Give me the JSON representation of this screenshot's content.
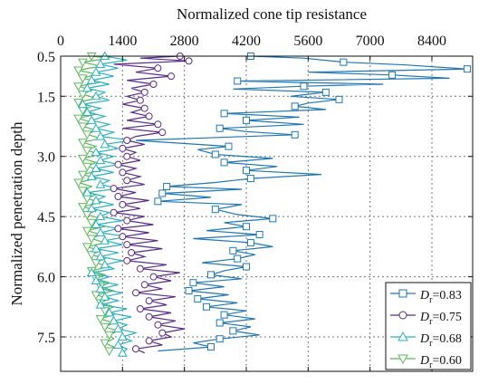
{
  "chart_data": {
    "type": "line",
    "xlabel": "Normalized cone tip resistance",
    "ylabel": "Normalized penetration depth",
    "x_axis_position": "top",
    "y_axis_inverted": true,
    "xlim": [
      0,
      9800
    ],
    "ylim": [
      0.5,
      8.2
    ],
    "xticks": [
      "0",
      "1400",
      "2800",
      "4200",
      "5600",
      "7000",
      "8400"
    ],
    "yticks": [
      "0.5",
      "1.5",
      "3.0",
      "4.5",
      "6.0",
      "7.5"
    ],
    "grid": true,
    "legend_position": "bottom-right",
    "series": [
      {
        "name": "=0.83",
        "legend_prefix": "D",
        "legend_subscript": "r",
        "color": "#1f77b4",
        "marker": "square",
        "points": [
          [
            4300,
            0.5
          ],
          [
            5500,
            0.55
          ],
          [
            6400,
            0.65
          ],
          [
            7800,
            0.72
          ],
          [
            9200,
            0.82
          ],
          [
            5600,
            0.9
          ],
          [
            7500,
            0.97
          ],
          [
            8800,
            1.05
          ],
          [
            4000,
            1.12
          ],
          [
            7300,
            1.2
          ],
          [
            5500,
            1.25
          ],
          [
            3900,
            1.32
          ],
          [
            6000,
            1.4
          ],
          [
            5200,
            1.5
          ],
          [
            6300,
            1.58
          ],
          [
            5600,
            1.67
          ],
          [
            5300,
            1.75
          ],
          [
            6000,
            1.83
          ],
          [
            3700,
            1.93
          ],
          [
            5400,
            2.02
          ],
          [
            4200,
            2.1
          ],
          [
            5500,
            2.2
          ],
          [
            3600,
            2.3
          ],
          [
            4200,
            2.38
          ],
          [
            5300,
            2.46
          ],
          [
            1700,
            2.6
          ],
          [
            3800,
            2.75
          ],
          [
            3100,
            2.83
          ],
          [
            3500,
            2.95
          ],
          [
            4800,
            3.05
          ],
          [
            3700,
            3.15
          ],
          [
            4900,
            3.25
          ],
          [
            4200,
            3.35
          ],
          [
            5900,
            3.45
          ],
          [
            4300,
            3.55
          ],
          [
            3500,
            3.65
          ],
          [
            2400,
            3.75
          ],
          [
            4100,
            3.82
          ],
          [
            2300,
            3.92
          ],
          [
            3400,
            4.02
          ],
          [
            2200,
            4.12
          ],
          [
            4100,
            4.2
          ],
          [
            3500,
            4.32
          ],
          [
            4000,
            4.45
          ],
          [
            4800,
            4.55
          ],
          [
            3700,
            4.65
          ],
          [
            4200,
            4.75
          ],
          [
            3300,
            4.85
          ],
          [
            4500,
            4.95
          ],
          [
            3000,
            5.05
          ],
          [
            4300,
            5.15
          ],
          [
            4800,
            5.25
          ],
          [
            3900,
            5.35
          ],
          [
            4400,
            5.45
          ],
          [
            4000,
            5.55
          ],
          [
            3200,
            5.65
          ],
          [
            4200,
            5.75
          ],
          [
            3700,
            5.85
          ],
          [
            3400,
            5.95
          ],
          [
            4100,
            6.05
          ],
          [
            3000,
            6.15
          ],
          [
            3700,
            6.25
          ],
          [
            2900,
            6.35
          ],
          [
            3800,
            6.45
          ],
          [
            3100,
            6.55
          ],
          [
            4000,
            6.65
          ],
          [
            3300,
            6.75
          ],
          [
            4200,
            6.85
          ],
          [
            3700,
            6.95
          ],
          [
            4400,
            7.05
          ],
          [
            3600,
            7.15
          ],
          [
            4300,
            7.25
          ],
          [
            3900,
            7.35
          ],
          [
            4500,
            7.45
          ],
          [
            3600,
            7.55
          ],
          [
            3000,
            7.65
          ],
          [
            3400,
            7.75
          ],
          [
            2200,
            7.85
          ]
        ]
      },
      {
        "name": "=0.75",
        "legend_prefix": "D",
        "legend_subscript": "r",
        "color": "#5a2a8a",
        "marker": "circle",
        "points": [
          [
            2700,
            0.5
          ],
          [
            1800,
            0.55
          ],
          [
            2900,
            0.62
          ],
          [
            1200,
            0.7
          ],
          [
            2200,
            0.8
          ],
          [
            1700,
            0.9
          ],
          [
            2500,
            1.0
          ],
          [
            1500,
            1.1
          ],
          [
            2100,
            1.2
          ],
          [
            1600,
            1.3
          ],
          [
            1900,
            1.4
          ],
          [
            1500,
            1.5
          ],
          [
            1800,
            1.6
          ],
          [
            1400,
            1.7
          ],
          [
            1900,
            1.8
          ],
          [
            1600,
            1.9
          ],
          [
            2000,
            2.0
          ],
          [
            1500,
            2.1
          ],
          [
            2200,
            2.2
          ],
          [
            1400,
            2.3
          ],
          [
            2300,
            2.4
          ],
          [
            1700,
            2.5
          ],
          [
            1500,
            2.6
          ],
          [
            1900,
            2.7
          ],
          [
            1400,
            2.8
          ],
          [
            1700,
            2.9
          ],
          [
            1500,
            3.0
          ],
          [
            1800,
            3.1
          ],
          [
            1300,
            3.2
          ],
          [
            1700,
            3.3
          ],
          [
            1400,
            3.4
          ],
          [
            1800,
            3.5
          ],
          [
            1500,
            3.6
          ],
          [
            1900,
            3.7
          ],
          [
            1200,
            3.8
          ],
          [
            1700,
            3.9
          ],
          [
            1300,
            4.0
          ],
          [
            2000,
            4.1
          ],
          [
            1400,
            4.2
          ],
          [
            1800,
            4.3
          ],
          [
            1200,
            4.4
          ],
          [
            1900,
            4.5
          ],
          [
            1500,
            4.6
          ],
          [
            2100,
            4.7
          ],
          [
            1300,
            4.8
          ],
          [
            2000,
            4.9
          ],
          [
            1400,
            5.0
          ],
          [
            2200,
            5.1
          ],
          [
            1500,
            5.2
          ],
          [
            2300,
            5.3
          ],
          [
            1600,
            5.4
          ],
          [
            1900,
            5.5
          ],
          [
            1500,
            5.6
          ],
          [
            2400,
            5.7
          ],
          [
            1800,
            5.8
          ],
          [
            2700,
            5.9
          ],
          [
            2100,
            6.0
          ],
          [
            2500,
            6.1
          ],
          [
            1900,
            6.2
          ],
          [
            2300,
            6.3
          ],
          [
            1700,
            6.4
          ],
          [
            2600,
            6.5
          ],
          [
            2000,
            6.6
          ],
          [
            2400,
            6.7
          ],
          [
            1800,
            6.8
          ],
          [
            2500,
            6.9
          ],
          [
            2000,
            7.0
          ],
          [
            2600,
            7.1
          ],
          [
            2200,
            7.2
          ],
          [
            2800,
            7.3
          ],
          [
            2300,
            7.4
          ],
          [
            2500,
            7.5
          ],
          [
            2000,
            7.6
          ],
          [
            2300,
            7.7
          ],
          [
            1700,
            7.8
          ],
          [
            1900,
            7.9
          ]
        ]
      },
      {
        "name": "=0.68",
        "legend_prefix": "D",
        "legend_subscript": "r",
        "color": "#2ab0c0",
        "marker": "triangle-up",
        "points": [
          [
            1000,
            0.5
          ],
          [
            1500,
            0.6
          ],
          [
            900,
            0.7
          ],
          [
            1300,
            0.8
          ],
          [
            800,
            0.9
          ],
          [
            1200,
            1.0
          ],
          [
            700,
            1.1
          ],
          [
            1100,
            1.2
          ],
          [
            600,
            1.3
          ],
          [
            1000,
            1.4
          ],
          [
            800,
            1.5
          ],
          [
            1100,
            1.6
          ],
          [
            500,
            1.7
          ],
          [
            900,
            1.8
          ],
          [
            600,
            1.9
          ],
          [
            1000,
            2.0
          ],
          [
            700,
            2.1
          ],
          [
            1100,
            2.2
          ],
          [
            800,
            2.3
          ],
          [
            1200,
            2.4
          ],
          [
            900,
            2.5
          ],
          [
            1600,
            2.6
          ],
          [
            1000,
            2.7
          ],
          [
            1300,
            2.8
          ],
          [
            800,
            2.9
          ],
          [
            1200,
            3.0
          ],
          [
            900,
            3.1
          ],
          [
            1300,
            3.2
          ],
          [
            800,
            3.3
          ],
          [
            1200,
            3.4
          ],
          [
            700,
            3.5
          ],
          [
            1100,
            3.6
          ],
          [
            900,
            3.7
          ],
          [
            1300,
            3.8
          ],
          [
            600,
            3.9
          ],
          [
            1000,
            4.0
          ],
          [
            800,
            4.1
          ],
          [
            1200,
            4.2
          ],
          [
            700,
            4.3
          ],
          [
            1100,
            4.4
          ],
          [
            900,
            4.5
          ],
          [
            1400,
            4.6
          ],
          [
            800,
            4.7
          ],
          [
            1300,
            4.8
          ],
          [
            900,
            4.9
          ],
          [
            1500,
            5.0
          ],
          [
            1000,
            5.1
          ],
          [
            1400,
            5.2
          ],
          [
            800,
            5.3
          ],
          [
            1300,
            5.4
          ],
          [
            900,
            5.5
          ],
          [
            1400,
            5.6
          ],
          [
            1000,
            5.7
          ],
          [
            1200,
            5.8
          ],
          [
            700,
            5.9
          ],
          [
            1100,
            6.0
          ],
          [
            800,
            6.1
          ],
          [
            1300,
            6.2
          ],
          [
            900,
            6.3
          ],
          [
            1400,
            6.4
          ],
          [
            1000,
            6.5
          ],
          [
            1300,
            6.6
          ],
          [
            900,
            6.7
          ],
          [
            1500,
            6.8
          ],
          [
            1100,
            6.9
          ],
          [
            1600,
            7.0
          ],
          [
            1200,
            7.1
          ],
          [
            1500,
            7.2
          ],
          [
            1300,
            7.3
          ],
          [
            1700,
            7.4
          ],
          [
            1400,
            7.5
          ],
          [
            1600,
            7.6
          ],
          [
            1300,
            7.7
          ],
          [
            1500,
            7.8
          ],
          [
            1400,
            7.9
          ]
        ]
      },
      {
        "name": "=0.60",
        "legend_prefix": "D",
        "legend_subscript": "r",
        "color": "#5cb85c",
        "marker": "triangle-down",
        "points": [
          [
            700,
            0.5
          ],
          [
            1100,
            0.55
          ],
          [
            500,
            0.65
          ],
          [
            900,
            0.75
          ],
          [
            400,
            0.85
          ],
          [
            800,
            0.95
          ],
          [
            500,
            1.05
          ],
          [
            900,
            1.15
          ],
          [
            400,
            1.25
          ],
          [
            700,
            1.35
          ],
          [
            500,
            1.45
          ],
          [
            800,
            1.55
          ],
          [
            400,
            1.65
          ],
          [
            700,
            1.75
          ],
          [
            500,
            1.85
          ],
          [
            800,
            1.95
          ],
          [
            400,
            2.05
          ],
          [
            700,
            2.15
          ],
          [
            500,
            2.25
          ],
          [
            800,
            2.35
          ],
          [
            600,
            2.45
          ],
          [
            900,
            2.55
          ],
          [
            500,
            2.65
          ],
          [
            800,
            2.75
          ],
          [
            600,
            2.85
          ],
          [
            900,
            2.95
          ],
          [
            500,
            3.05
          ],
          [
            800,
            3.15
          ],
          [
            600,
            3.25
          ],
          [
            900,
            3.35
          ],
          [
            500,
            3.45
          ],
          [
            800,
            3.55
          ],
          [
            400,
            3.65
          ],
          [
            700,
            3.75
          ],
          [
            500,
            3.85
          ],
          [
            800,
            3.95
          ],
          [
            600,
            4.05
          ],
          [
            900,
            4.15
          ],
          [
            500,
            4.25
          ],
          [
            800,
            4.35
          ],
          [
            600,
            4.45
          ],
          [
            900,
            4.55
          ],
          [
            700,
            4.65
          ],
          [
            1000,
            4.75
          ],
          [
            600,
            4.85
          ],
          [
            900,
            4.95
          ],
          [
            700,
            5.05
          ],
          [
            1000,
            5.15
          ],
          [
            600,
            5.25
          ],
          [
            900,
            5.35
          ],
          [
            700,
            5.45
          ],
          [
            1000,
            5.55
          ],
          [
            800,
            5.65
          ],
          [
            1100,
            5.75
          ],
          [
            700,
            5.85
          ],
          [
            1000,
            5.95
          ],
          [
            800,
            6.05
          ],
          [
            1100,
            6.15
          ],
          [
            900,
            6.25
          ],
          [
            1200,
            6.35
          ],
          [
            800,
            6.45
          ],
          [
            1100,
            6.55
          ],
          [
            900,
            6.65
          ],
          [
            1200,
            6.75
          ],
          [
            1000,
            6.85
          ],
          [
            1200,
            6.95
          ],
          [
            900,
            7.05
          ],
          [
            1200,
            7.15
          ],
          [
            1000,
            7.25
          ],
          [
            1300,
            7.35
          ],
          [
            1100,
            7.45
          ],
          [
            1200,
            7.55
          ],
          [
            1000,
            7.65
          ],
          [
            1200,
            7.75
          ],
          [
            1100,
            7.85
          ]
        ]
      }
    ]
  }
}
